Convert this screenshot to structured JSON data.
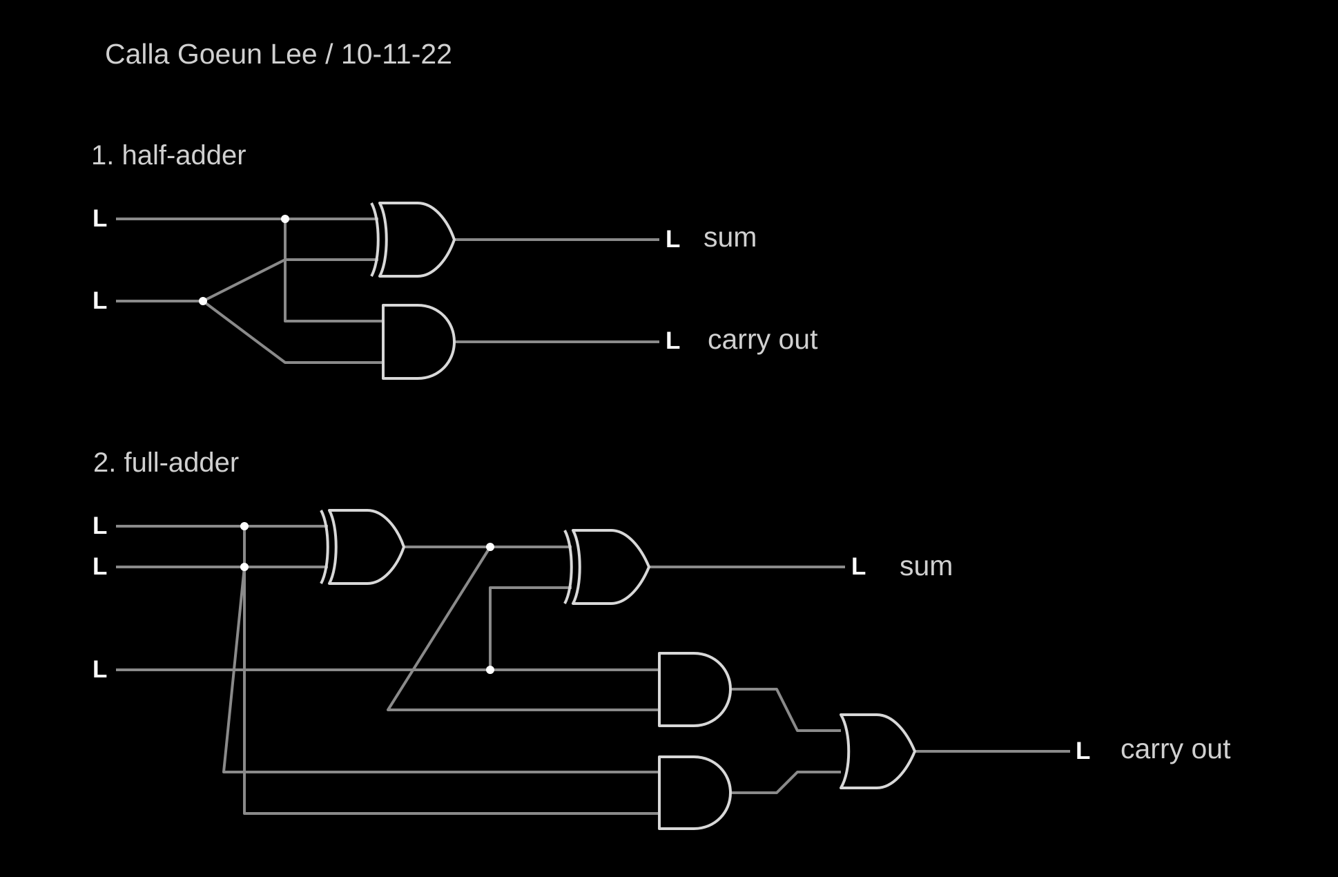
{
  "header": {
    "author_date": "Calla Goeun Lee / 10-11-22"
  },
  "half_adder": {
    "title": "1. half-adder",
    "input_a": "L",
    "input_b": "L",
    "sum_level": "L",
    "sum_label": "sum",
    "carry_level": "L",
    "carry_label": "carry out",
    "gates": [
      "xor-gate",
      "and-gate"
    ]
  },
  "full_adder": {
    "title": "2. full-adder",
    "input_a": "L",
    "input_b": "L",
    "input_cin": "L",
    "sum_level": "L",
    "sum_label": "sum",
    "carry_level": "L",
    "carry_label": "carry out",
    "gates": [
      "xor-gate",
      "xor-gate",
      "and-gate",
      "and-gate",
      "or-gate"
    ]
  },
  "colors": {
    "background": "#000000",
    "wire": "#8a8a8a",
    "gate_outline": "#d8d8d8",
    "text": "#d0d0d0",
    "pin_text": "#ffffff"
  }
}
